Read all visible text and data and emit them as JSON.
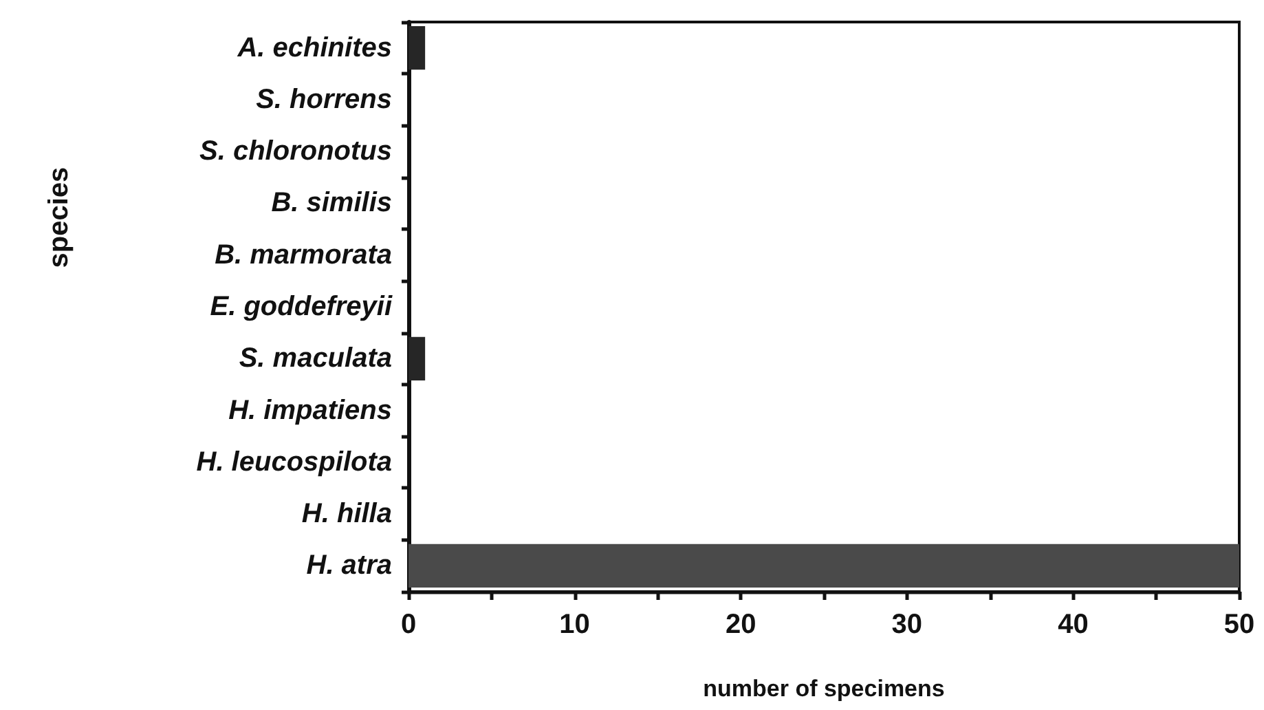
{
  "chart_data": {
    "type": "bar",
    "orientation": "horizontal",
    "categories": [
      "A. echinites",
      "S. horrens",
      "S. chloronotus",
      "B. similis",
      "B. marmorata",
      "E. goddefreyii",
      "S. maculata",
      "H. impatiens",
      "H. leucospilota",
      "H. hilla",
      "H. atra"
    ],
    "values": [
      1,
      0,
      0,
      0,
      0,
      0,
      1,
      0,
      0,
      0,
      50
    ],
    "colors": [
      "#262626",
      "#262626",
      "#262626",
      "#262626",
      "#262626",
      "#262626",
      "#262626",
      "#262626",
      "#262626",
      "#262626",
      "#4a4a4a"
    ],
    "xlabel": "number of specimens",
    "ylabel": "species",
    "xlim": [
      0,
      50
    ],
    "xticks": [
      0,
      {
        "value": 5,
        "label": null
      },
      10,
      {
        "value": 15,
        "label": null
      },
      20,
      {
        "value": 25,
        "label": null
      },
      30,
      {
        "value": 35,
        "label": null
      },
      40,
      {
        "value": 45,
        "label": null
      },
      50
    ],
    "grid": false
  }
}
